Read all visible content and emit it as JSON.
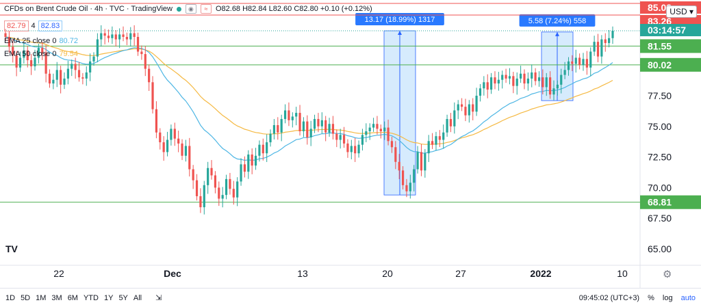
{
  "header": {
    "symbol": "CFDs on Brent Crude Oil · 4h · TVC · TradingView",
    "ohlc": "O82.68 H82.84 L82.60 C82.80 +0.10 (+0.12%)",
    "sell": "82.79",
    "spread": "4",
    "buy": "82.83",
    "currency": "USD"
  },
  "indicators": [
    {
      "label": "EMA 25 close 0",
      "value": "80.72",
      "color": "#4db6e4"
    },
    {
      "label": "EMA 50 close 0",
      "value": "79.54",
      "color": "#f5b942"
    }
  ],
  "timeframes": [
    "1D",
    "5D",
    "1M",
    "3M",
    "6M",
    "YTD",
    "1Y",
    "5Y",
    "All"
  ],
  "status": {
    "time": "09:45:02 (UTC+3)",
    "pct": "%",
    "log": "log",
    "auto": "auto"
  },
  "chart_data": {
    "type": "candlestick",
    "y_ticks": [
      "65.00",
      "67.50",
      "70.00",
      "72.50",
      "75.00",
      "77.50"
    ],
    "x_ticks": [
      {
        "label": "22",
        "bold": false
      },
      {
        "label": "Dec",
        "bold": true
      },
      {
        "label": "13",
        "bold": false
      },
      {
        "label": "20",
        "bold": false
      },
      {
        "label": "27",
        "bold": false
      },
      {
        "label": "2022",
        "bold": true
      },
      {
        "label": "10",
        "bold": false
      }
    ],
    "ylim": [
      64.2,
      86.0
    ],
    "levels": [
      {
        "value": 81.55,
        "label": "81.55"
      },
      {
        "value": 80.02,
        "label": "80.02"
      },
      {
        "value": 68.81,
        "label": "68.81"
      }
    ],
    "price_tags": [
      {
        "label": "85.03",
        "color": "#ef5350"
      },
      {
        "label": "83.26",
        "color": "#ef5350"
      },
      {
        "label": "03:14:57",
        "color": "#26a69a"
      }
    ],
    "measurements": [
      {
        "label": "13.17 (18.99%) 1317",
        "low": 69.4,
        "high": 82.8
      },
      {
        "label": "5.58 (7.24%) 558",
        "low": 77.1,
        "high": 82.7
      }
    ],
    "closes": [
      82.3,
      81.5,
      80.8,
      79.8,
      80.6,
      81.2,
      80.4,
      79.9,
      80.6,
      81.4,
      81.0,
      79.3,
      78.5,
      78.8,
      79.6,
      78.4,
      78.9,
      79.7,
      80.1,
      79.6,
      79.0,
      78.9,
      79.4,
      80.3,
      80.7,
      82.1,
      82.6,
      82.4,
      82.2,
      82.5,
      82.1,
      82.5,
      82.3,
      82.1,
      82.6,
      82.3,
      81.1,
      80.9,
      79.7,
      78.6,
      76.4,
      74.5,
      73.7,
      72.9,
      73.9,
      74.8,
      74.0,
      73.6,
      72.6,
      73.4,
      71.5,
      70.6,
      69.3,
      68.4,
      70.2,
      71.6,
      71.0,
      70.0,
      69.1,
      69.4,
      70.7,
      69.9,
      69.2,
      70.5,
      71.9,
      71.3,
      72.7,
      71.8,
      72.6,
      73.5,
      72.8,
      73.7,
      74.4,
      75.1,
      74.5,
      75.6,
      76.3,
      75.5,
      75.8,
      76.1,
      74.6,
      75.4,
      74.1,
      74.8,
      75.6,
      75.0,
      75.5,
      74.5,
      75.2,
      74.4,
      73.9,
      74.3,
      73.6,
      72.9,
      73.4,
      72.8,
      73.5,
      74.3,
      74.6,
      74.9,
      75.2,
      74.8,
      74.6,
      74.9,
      73.8,
      73.3,
      72.1,
      71.4,
      70.2,
      69.7,
      70.4,
      71.5,
      72.9,
      71.4,
      72.8,
      73.8,
      73.5,
      74.2,
      73.9,
      74.5,
      75.6,
      75.0,
      76.3,
      76.8,
      76.6,
      75.9,
      76.8,
      76.2,
      77.5,
      78.1,
      78.6,
      78.0,
      79.0,
      78.5,
      78.8,
      79.2,
      78.9,
      79.1,
      78.3,
      78.9,
      79.3,
      78.5,
      78.9,
      79.4,
      78.7,
      79.0,
      78.2,
      79.0,
      77.6,
      78.1,
      78.4,
      79.2,
      79.6,
      80.3,
      80.1,
      80.6,
      80.0,
      80.5,
      79.8,
      81.1,
      81.9,
      80.7,
      82.1,
      81.8,
      82.2,
      82.8
    ]
  }
}
